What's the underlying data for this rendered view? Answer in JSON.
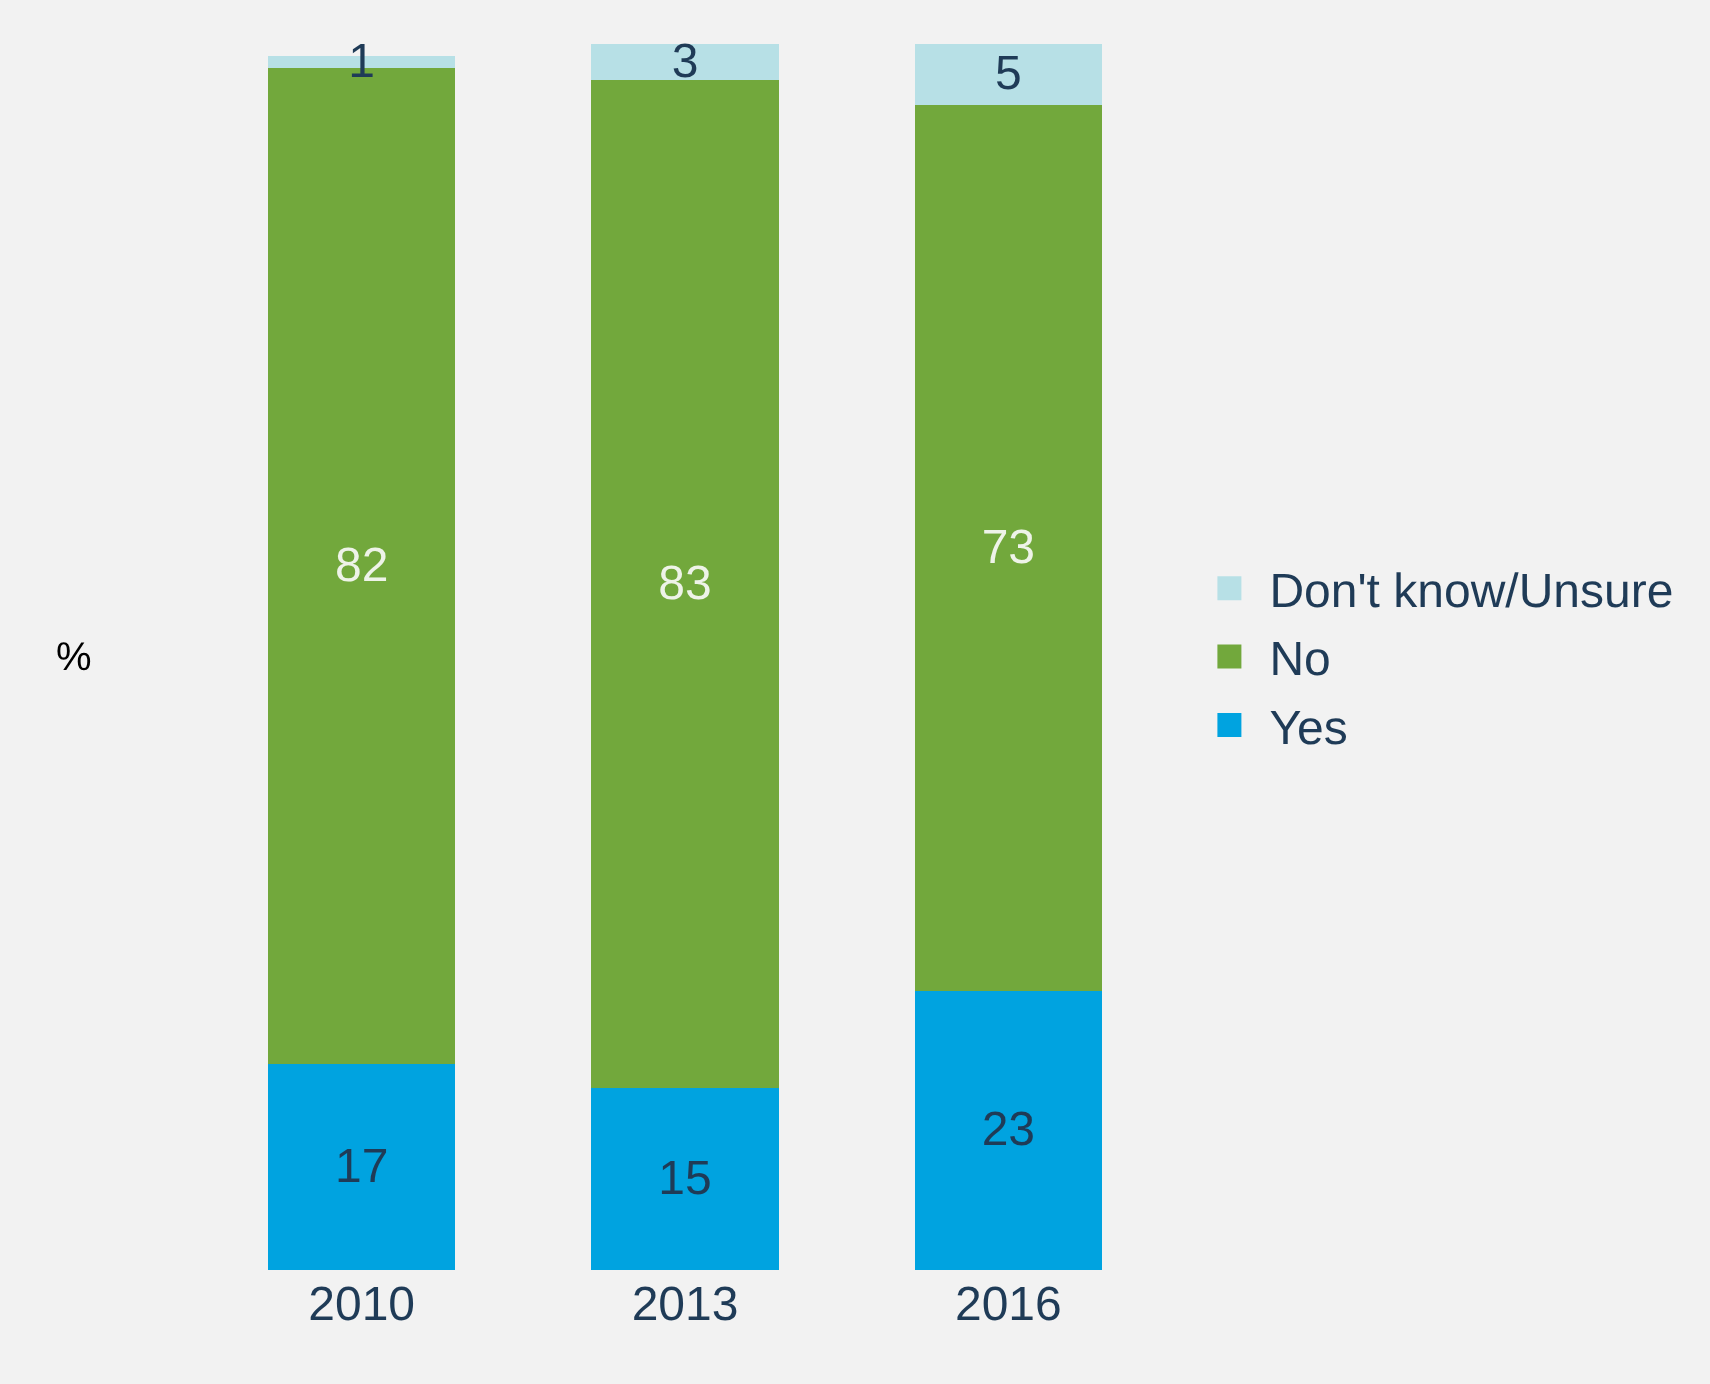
{
  "chart_data": {
    "type": "bar",
    "stacked": true,
    "data_labels": true,
    "ylabel": "%",
    "legend": "right",
    "categories": [
      "2010",
      "2013",
      "2016"
    ],
    "series": [
      {
        "name": "Yes",
        "color": "#00a3e0",
        "values": [
          17,
          15,
          23
        ]
      },
      {
        "name": "No",
        "color": "#72a83c",
        "values": [
          82,
          83,
          73
        ]
      },
      {
        "name": "Don't know/Unsure",
        "color": "#b7e0e6",
        "values": [
          1,
          3,
          5
        ]
      }
    ]
  }
}
